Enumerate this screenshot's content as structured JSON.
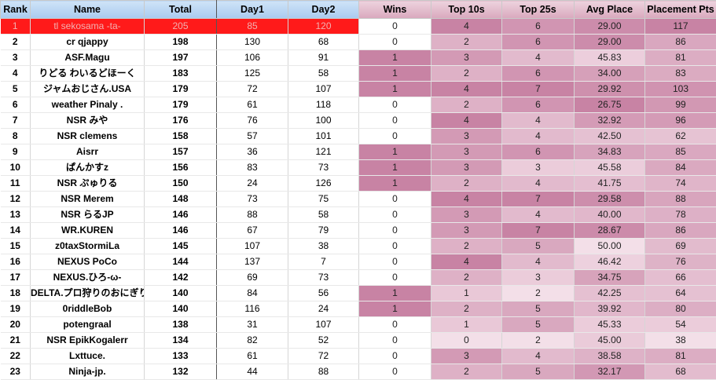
{
  "columns": {
    "rank": "Rank",
    "name": "Name",
    "total": "Total",
    "day1": "Day1",
    "day2": "Day2",
    "wins": "Wins",
    "top10": "Top 10s",
    "top25": "Top 25s",
    "avg": "Avg Place",
    "pts": "Placement Pts"
  },
  "colors": {
    "leader_row": "#ff1a1a",
    "header_blue": "#a9cbef",
    "header_pink": "#d9a8bd",
    "heat_low": "#fbeff4",
    "heat_high": "#c883a4"
  },
  "rows": [
    {
      "rank": "1",
      "name": "tl sekosama -ta-",
      "total": "205",
      "day1": "85",
      "day2": "120",
      "wins": "0",
      "top10": "4",
      "top25": "6",
      "avg": "29.00",
      "pts": "117"
    },
    {
      "rank": "2",
      "name": "cr qjappy",
      "total": "198",
      "day1": "130",
      "day2": "68",
      "wins": "0",
      "top10": "2",
      "top25": "6",
      "avg": "29.00",
      "pts": "86"
    },
    {
      "rank": "3",
      "name": "ASF.Magu",
      "total": "197",
      "day1": "106",
      "day2": "91",
      "wins": "1",
      "top10": "3",
      "top25": "4",
      "avg": "45.83",
      "pts": "81"
    },
    {
      "rank": "4",
      "name": "りどる わいるどほーく",
      "total": "183",
      "day1": "125",
      "day2": "58",
      "wins": "1",
      "top10": "2",
      "top25": "6",
      "avg": "34.00",
      "pts": "83"
    },
    {
      "rank": "5",
      "name": "ジャムおじさん.USA",
      "total": "179",
      "day1": "72",
      "day2": "107",
      "wins": "1",
      "top10": "4",
      "top25": "7",
      "avg": "29.92",
      "pts": "103"
    },
    {
      "rank": "6",
      "name": "weather Pinaly .",
      "total": "179",
      "day1": "61",
      "day2": "118",
      "wins": "0",
      "top10": "2",
      "top25": "6",
      "avg": "26.75",
      "pts": "99"
    },
    {
      "rank": "7",
      "name": "NSR みや",
      "total": "176",
      "day1": "76",
      "day2": "100",
      "wins": "0",
      "top10": "4",
      "top25": "4",
      "avg": "32.92",
      "pts": "96"
    },
    {
      "rank": "8",
      "name": "NSR clemens",
      "total": "158",
      "day1": "57",
      "day2": "101",
      "wins": "0",
      "top10": "3",
      "top25": "4",
      "avg": "42.50",
      "pts": "62"
    },
    {
      "rank": "9",
      "name": "Aisrr",
      "total": "157",
      "day1": "36",
      "day2": "121",
      "wins": "1",
      "top10": "3",
      "top25": "6",
      "avg": "34.83",
      "pts": "85"
    },
    {
      "rank": "10",
      "name": "ぱんかすz",
      "total": "156",
      "day1": "83",
      "day2": "73",
      "wins": "1",
      "top10": "3",
      "top25": "3",
      "avg": "45.58",
      "pts": "84"
    },
    {
      "rank": "11",
      "name": "NSR ぷゅりる",
      "total": "150",
      "day1": "24",
      "day2": "126",
      "wins": "1",
      "top10": "2",
      "top25": "4",
      "avg": "41.75",
      "pts": "74"
    },
    {
      "rank": "12",
      "name": "NSR Merem",
      "total": "148",
      "day1": "73",
      "day2": "75",
      "wins": "0",
      "top10": "4",
      "top25": "7",
      "avg": "29.58",
      "pts": "88"
    },
    {
      "rank": "13",
      "name": "NSR らるJP",
      "total": "146",
      "day1": "88",
      "day2": "58",
      "wins": "0",
      "top10": "3",
      "top25": "4",
      "avg": "40.00",
      "pts": "78"
    },
    {
      "rank": "14",
      "name": "WR.KUREN",
      "total": "146",
      "day1": "67",
      "day2": "79",
      "wins": "0",
      "top10": "3",
      "top25": "7",
      "avg": "28.67",
      "pts": "86"
    },
    {
      "rank": "15",
      "name": "z0taxStormiLa",
      "total": "145",
      "day1": "107",
      "day2": "38",
      "wins": "0",
      "top10": "2",
      "top25": "5",
      "avg": "50.00",
      "pts": "69"
    },
    {
      "rank": "16",
      "name": "NEXUS PoCo",
      "total": "144",
      "day1": "137",
      "day2": "7",
      "wins": "0",
      "top10": "4",
      "top25": "4",
      "avg": "46.42",
      "pts": "76"
    },
    {
      "rank": "17",
      "name": "NEXUS.ひろ-ω-",
      "total": "142",
      "day1": "69",
      "day2": "73",
      "wins": "0",
      "top10": "2",
      "top25": "3",
      "avg": "34.75",
      "pts": "66"
    },
    {
      "rank": "18",
      "name": "DELTA.プロ狩りのおにぎり",
      "total": "140",
      "day1": "84",
      "day2": "56",
      "wins": "1",
      "top10": "1",
      "top25": "2",
      "avg": "42.25",
      "pts": "64"
    },
    {
      "rank": "19",
      "name": "0riddleBob",
      "total": "140",
      "day1": "116",
      "day2": "24",
      "wins": "1",
      "top10": "2",
      "top25": "5",
      "avg": "39.92",
      "pts": "80"
    },
    {
      "rank": "20",
      "name": "potengraal",
      "total": "138",
      "day1": "31",
      "day2": "107",
      "wins": "0",
      "top10": "1",
      "top25": "5",
      "avg": "45.33",
      "pts": "54"
    },
    {
      "rank": "21",
      "name": "NSR EpikKogalerr",
      "total": "134",
      "day1": "82",
      "day2": "52",
      "wins": "0",
      "top10": "0",
      "top25": "2",
      "avg": "45.00",
      "pts": "38"
    },
    {
      "rank": "22",
      "name": "Lxttuce.",
      "total": "133",
      "day1": "61",
      "day2": "72",
      "wins": "0",
      "top10": "3",
      "top25": "4",
      "avg": "38.58",
      "pts": "81"
    },
    {
      "rank": "23",
      "name": "Ninja-jp.",
      "total": "132",
      "day1": "44",
      "day2": "88",
      "wins": "0",
      "top10": "2",
      "top25": "5",
      "avg": "32.17",
      "pts": "68"
    }
  ]
}
